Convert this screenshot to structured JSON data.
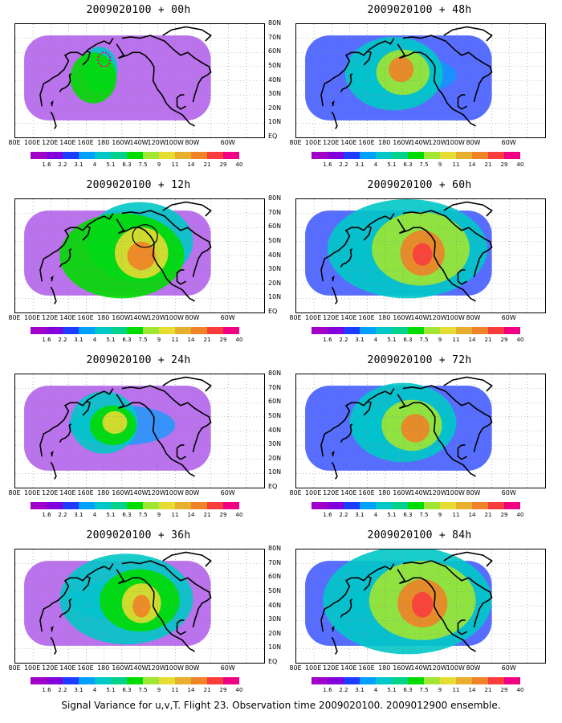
{
  "panels": [
    {
      "title": "2009020100 + 00h",
      "level": 0
    },
    {
      "title": "2009020100 + 48h",
      "level": 4
    },
    {
      "title": "2009020100 + 12h",
      "level": 1
    },
    {
      "title": "2009020100 + 60h",
      "level": 5
    },
    {
      "title": "2009020100 + 24h",
      "level": 2
    },
    {
      "title": "2009020100 + 72h",
      "level": 6
    },
    {
      "title": "2009020100 + 36h",
      "level": 3
    },
    {
      "title": "2009020100 + 84h",
      "level": 7
    }
  ],
  "lat_labels": [
    "80N",
    "70N",
    "60N",
    "50N",
    "40N",
    "30N",
    "20N",
    "10N",
    "EQ"
  ],
  "lon_labels": [
    "80E",
    "100E",
    "120E",
    "140E",
    "160E",
    "180",
    "160W",
    "140W",
    "120W",
    "100W",
    "80W",
    "60W"
  ],
  "colorbar": {
    "colors": [
      "#a000c8",
      "#8200dc",
      "#1e3cff",
      "#00a0ff",
      "#00c8c8",
      "#00d28c",
      "#00dc00",
      "#a0e632",
      "#e6dc32",
      "#e6af2d",
      "#f08228",
      "#fa3c3c",
      "#f00082"
    ],
    "labels": [
      "1.6",
      "2.2",
      "3.1",
      "4",
      "5.1",
      "6.3",
      "7.5",
      "9",
      "11",
      "14",
      "21",
      "29",
      "40"
    ]
  },
  "caption": "Signal Variance for u,v,T. Flight 23. Observation time 2009020100. 2009012900 ensemble."
}
